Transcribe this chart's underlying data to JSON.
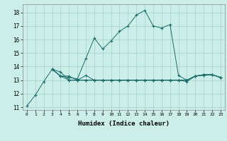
{
  "xlabel": "Humidex (Indice chaleur)",
  "bg_color": "#cceee8",
  "grid_color": "#aad4ce",
  "line_color": "#1a6b6b",
  "xlim": [
    -0.5,
    23.5
  ],
  "ylim": [
    10.8,
    18.6
  ],
  "xticks": [
    0,
    1,
    2,
    3,
    4,
    5,
    6,
    7,
    8,
    9,
    10,
    11,
    12,
    13,
    14,
    15,
    16,
    17,
    18,
    19,
    20,
    21,
    22,
    23
  ],
  "yticks": [
    11,
    12,
    13,
    14,
    15,
    16,
    17,
    18
  ],
  "series": [
    {
      "x": [
        0,
        1,
        2,
        3,
        4,
        5,
        6,
        7,
        8,
        9,
        10,
        11,
        12,
        13,
        14,
        15,
        16,
        17,
        18,
        19,
        20,
        21,
        22,
        23
      ],
      "y": [
        11.1,
        11.9,
        12.9,
        13.8,
        13.3,
        13.2,
        13.1,
        14.6,
        16.1,
        15.3,
        15.9,
        16.6,
        17.0,
        17.8,
        18.15,
        17.0,
        16.85,
        17.1,
        13.35,
        13.0,
        13.3,
        13.35,
        13.4,
        13.2
      ]
    },
    {
      "x": [
        3,
        4,
        5,
        6,
        7,
        8,
        9,
        10,
        11,
        12,
        13,
        14,
        15,
        16,
        17,
        18,
        19,
        20,
        21,
        22,
        23
      ],
      "y": [
        13.8,
        13.6,
        13.0,
        13.0,
        13.0,
        13.0,
        13.0,
        13.0,
        13.0,
        13.0,
        13.0,
        13.0,
        13.0,
        13.0,
        13.0,
        13.0,
        13.0,
        13.3,
        13.4,
        13.4,
        13.2
      ]
    },
    {
      "x": [
        3,
        4,
        5,
        6,
        7,
        8,
        9,
        10,
        11,
        12,
        13,
        14,
        15,
        16,
        17,
        18,
        19,
        20,
        21,
        22,
        23
      ],
      "y": [
        13.8,
        13.3,
        13.3,
        13.0,
        13.35,
        13.0,
        13.0,
        13.0,
        13.0,
        13.0,
        13.0,
        13.0,
        13.0,
        13.0,
        13.0,
        13.0,
        13.0,
        13.3,
        13.4,
        13.4,
        13.2
      ]
    },
    {
      "x": [
        3,
        4,
        5,
        6,
        7,
        8,
        9,
        10,
        11,
        12,
        13,
        14,
        15,
        16,
        17,
        18,
        19,
        20,
        21,
        22,
        23
      ],
      "y": [
        13.8,
        13.3,
        13.0,
        13.0,
        13.0,
        13.0,
        13.0,
        13.0,
        13.0,
        13.0,
        13.0,
        13.0,
        13.0,
        13.0,
        13.0,
        13.0,
        12.9,
        13.3,
        13.4,
        13.4,
        13.2
      ]
    }
  ]
}
